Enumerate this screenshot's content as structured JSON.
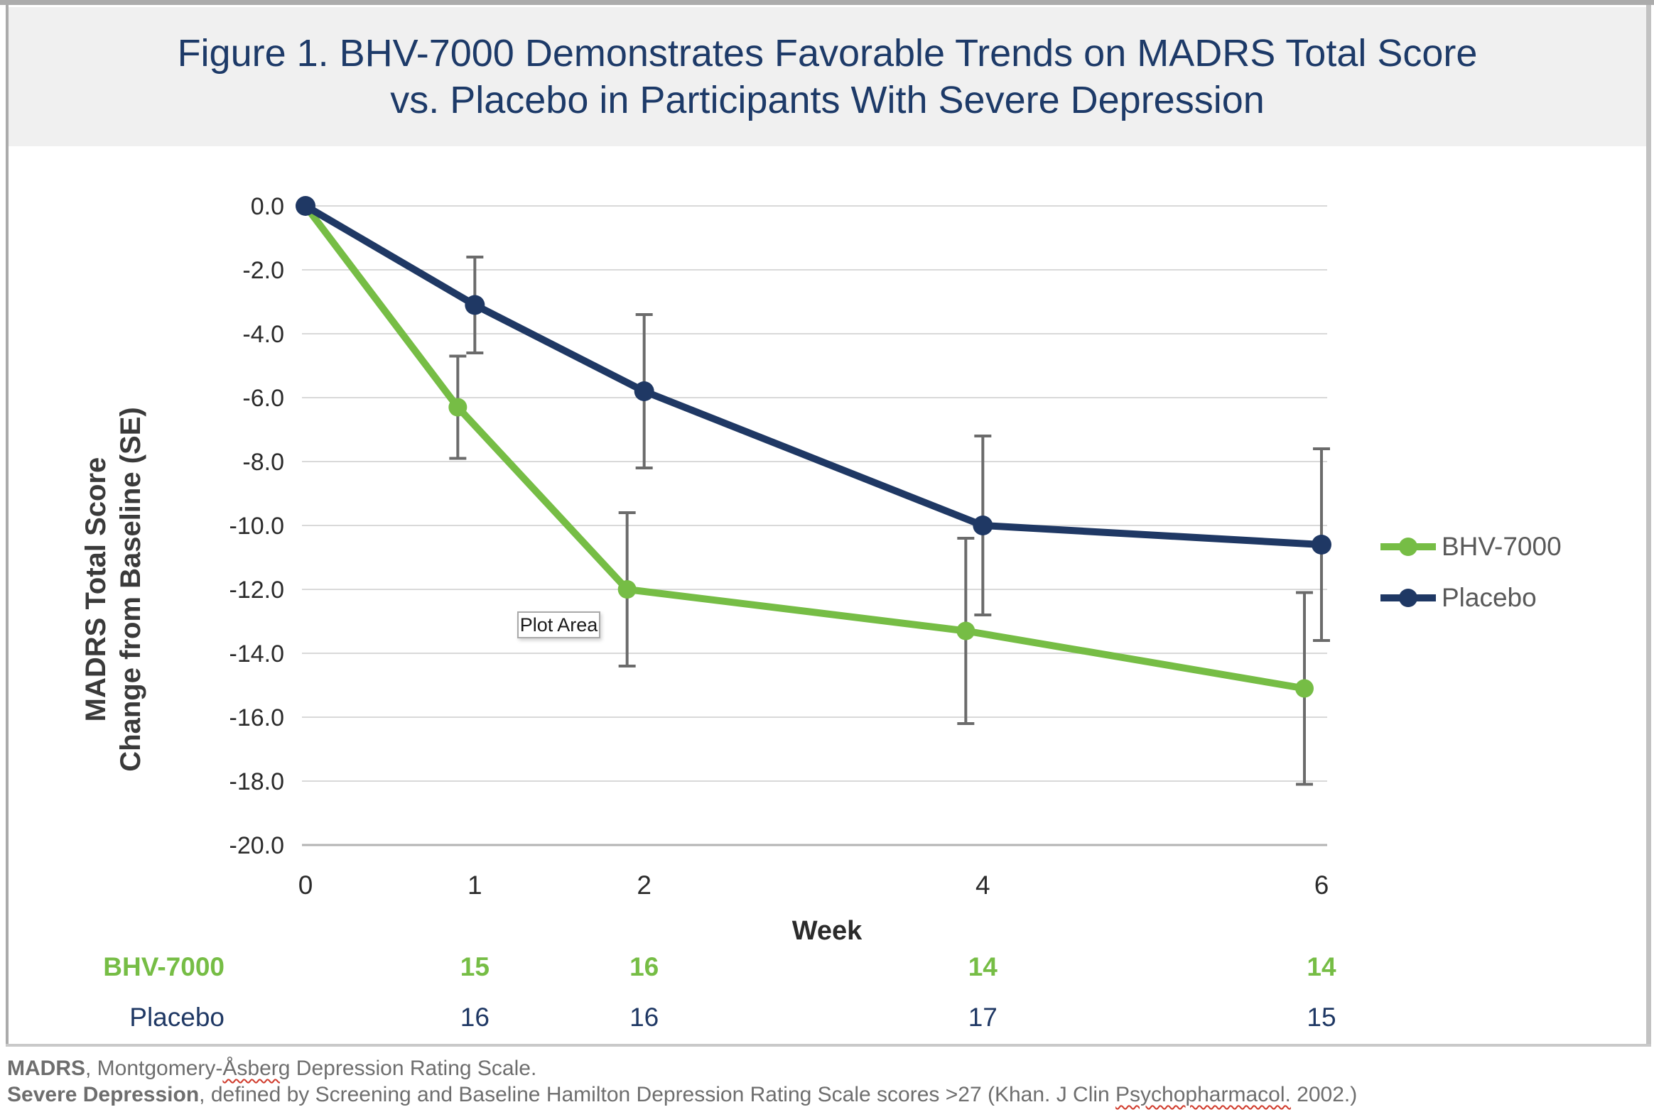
{
  "header": {
    "title_line1": "Figure 1. BHV-7000 Demonstrates Favorable Trends on MADRS Total Score",
    "title_line2": "vs. Placebo in Participants With Severe Depression"
  },
  "tooltip": {
    "label": "Plot Area"
  },
  "chart_data": {
    "type": "line",
    "title": "Figure 1. BHV-7000 Demonstrates Favorable Trends on MADRS Total Score vs. Placebo in Participants With Severe Depression",
    "x": [
      0,
      1,
      2,
      4,
      6
    ],
    "xlabel": "Week",
    "ylabel_line1": "MADRS Total Score",
    "ylabel_line2": "Change from Baseline (SE)",
    "ylim": [
      -20,
      0
    ],
    "y_tick_labels": [
      "0.0",
      "-2.0",
      "-4.0",
      "-6.0",
      "-8.0",
      "-10.0",
      "-12.0",
      "-14.0",
      "-16.0",
      "-18.0",
      "-20.0"
    ],
    "grid": true,
    "legend_position": "right",
    "series": [
      {
        "name": "BHV-7000",
        "color": "#76bd45",
        "values": [
          0.0,
          -6.3,
          -12.0,
          -13.3,
          -15.1
        ],
        "se": [
          null,
          1.6,
          2.4,
          2.9,
          3.0
        ]
      },
      {
        "name": "Placebo",
        "color": "#1f3864",
        "values": [
          0.0,
          -3.1,
          -5.8,
          -10.0,
          -10.6
        ],
        "se": [
          null,
          1.5,
          2.4,
          2.8,
          3.0
        ]
      }
    ],
    "n_table": {
      "columns_weeks": [
        1,
        2,
        4,
        6
      ],
      "rows": [
        {
          "label": "BHV-7000",
          "values": [
            "15",
            "16",
            "14",
            "14"
          ],
          "color": "#76bd45",
          "bold": true
        },
        {
          "label": "Placebo",
          "values": [
            "16",
            "16",
            "17",
            "15"
          ],
          "color": "#1f3864",
          "bold": false
        }
      ]
    }
  },
  "footnotes": {
    "line1": [
      {
        "text": "MADRS",
        "bold": true
      },
      {
        "text": ", Montgomery-"
      },
      {
        "text": "Åsberg",
        "squiggle": true
      },
      {
        "text": " Depression Rating Scale."
      }
    ],
    "line2": [
      {
        "text": "Severe Depression",
        "bold": true
      },
      {
        "text": ", defined by Screening and Baseline Hamilton Depression Rating Scale scores >27 (Khan. J Clin "
      },
      {
        "text": "Psychopharmacol.",
        "squiggle": true
      },
      {
        "text": " 2002.)"
      }
    ]
  }
}
